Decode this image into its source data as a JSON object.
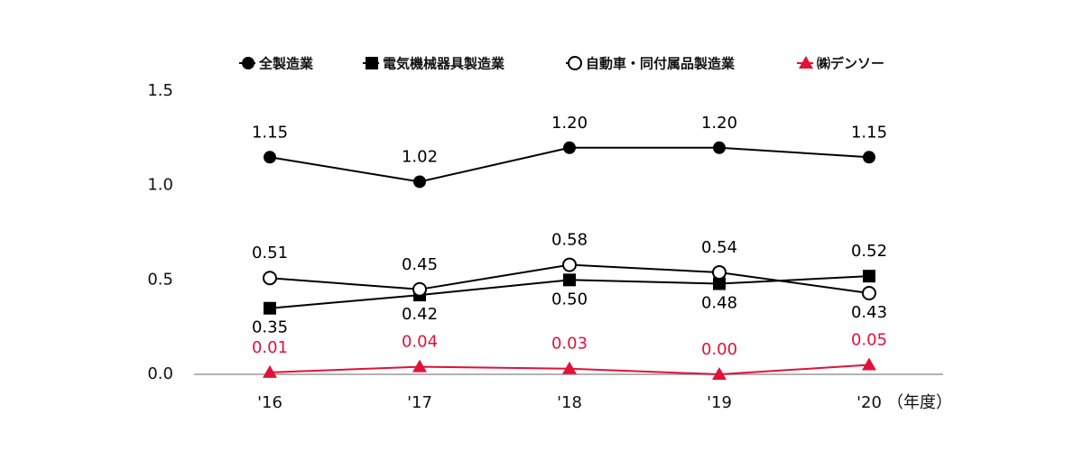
{
  "chart_data": {
    "type": "line",
    "categories": [
      "'16",
      "'17",
      "'18",
      "'19",
      "'20"
    ],
    "x_label": "（年度）",
    "ylim": [
      0,
      1.5
    ],
    "yticks": [
      {
        "value": 0,
        "label": "0.0"
      },
      0.5,
      {
        "value": 1,
        "label": "1.0"
      },
      1.5
    ],
    "grid": false,
    "legend": "top",
    "series": [
      {
        "name": "全製造業",
        "color": "#000000",
        "marker": "filled-circle",
        "values": [
          1.15,
          1.02,
          1.2,
          1.2,
          1.15
        ],
        "value_labels": [
          "1.15",
          "1.02",
          "1.20",
          "1.20",
          "1.15"
        ]
      },
      {
        "name": "電気機械器具製造業",
        "color": "#000000",
        "marker": "filled-square",
        "values": [
          0.35,
          0.42,
          0.5,
          0.48,
          0.52
        ],
        "value_labels": [
          "0.35",
          "0.42",
          "0.50",
          "0.48",
          "0.52"
        ]
      },
      {
        "name": "自動車・同付属品製造業",
        "color": "#000000",
        "marker": "open-circle",
        "values": [
          0.51,
          0.45,
          0.58,
          0.54,
          0.43
        ],
        "value_labels": [
          "0.51",
          "0.45",
          "0.58",
          "0.54",
          "0.43"
        ]
      },
      {
        "name": "㈱デンソー",
        "color": "#e0123a",
        "marker": "triangle",
        "values": [
          0.01,
          0.04,
          0.03,
          0.0,
          0.05
        ],
        "value_labels": [
          "0.01",
          "0.04",
          "0.03",
          "0.00",
          "0.05"
        ]
      }
    ]
  }
}
